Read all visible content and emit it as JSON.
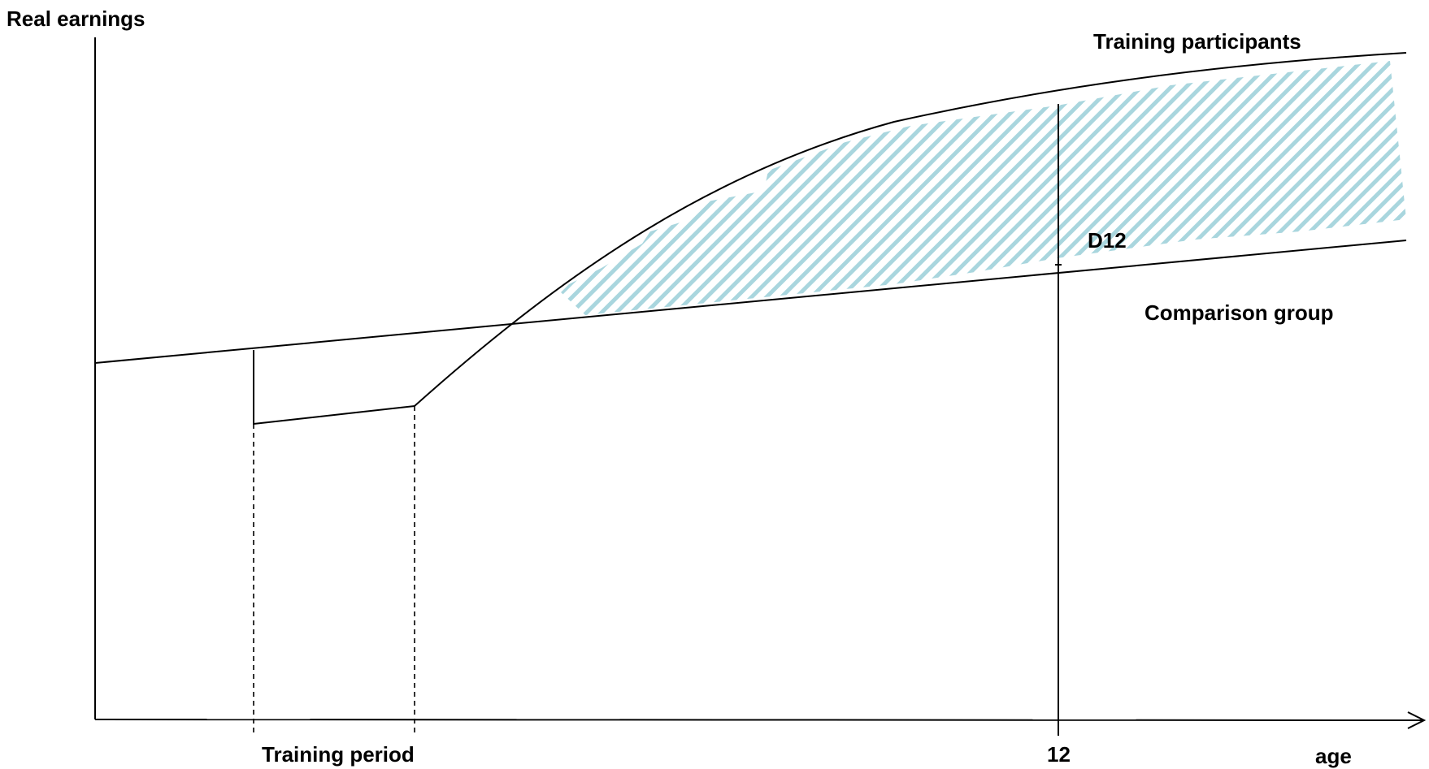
{
  "labels": {
    "y_axis": "Real earnings",
    "x_axis": "age",
    "training_participants": "Training participants",
    "comparison_group": "Comparison group",
    "difference": "D12",
    "tick_12": "12",
    "training_period": "Training period"
  },
  "colors": {
    "line": "#000000",
    "hatch": "#a9d6de",
    "background": "#ffffff"
  }
}
